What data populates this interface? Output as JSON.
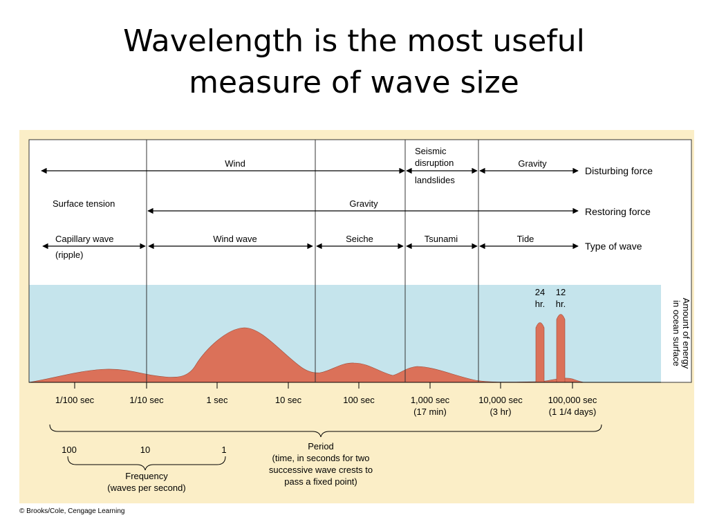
{
  "title": {
    "line1": "Wavelength is the most useful",
    "line2": "measure of wave size"
  },
  "rows": {
    "disturbing_force": {
      "label": "Disturbing force",
      "wind": "Wind",
      "seismic_line1": "Seismic",
      "seismic_line2": "disruption",
      "landslides": "landslides",
      "gravity": "Gravity"
    },
    "restoring_force": {
      "label": "Restoring force",
      "surface_tension": "Surface tension",
      "gravity": "Gravity"
    },
    "type_of_wave": {
      "label": "Type of wave",
      "capillary": "Capillary wave",
      "ripple": "(ripple)",
      "wind_wave": "Wind wave",
      "seiche": "Seiche",
      "tsunami": "Tsunami",
      "tide": "Tide"
    }
  },
  "energy": {
    "axis_label_line1": "Amount of energy",
    "axis_label_line2": "in ocean surface",
    "tide_24_line1": "24",
    "tide_24_line2": "hr.",
    "tide_12_line1": "12",
    "tide_12_line2": "hr."
  },
  "period_ticks": [
    {
      "line1": "1/100 sec",
      "line2": ""
    },
    {
      "line1": "1/10 sec",
      "line2": ""
    },
    {
      "line1": "1 sec",
      "line2": ""
    },
    {
      "line1": "10 sec",
      "line2": ""
    },
    {
      "line1": "100 sec",
      "line2": ""
    },
    {
      "line1": "1,000 sec",
      "line2": "(17 min)"
    },
    {
      "line1": "10,000 sec",
      "line2": "(3 hr)"
    },
    {
      "line1": "100,000 sec",
      "line2": "(1 1/4 days)"
    }
  ],
  "frequency_ticks": [
    "100",
    "10",
    "1"
  ],
  "period": {
    "line1": "Period",
    "line2": "(time, in seconds for two",
    "line3": "successive wave crests to",
    "line4": "pass a fixed point)"
  },
  "frequency": {
    "line1": "Frequency",
    "line2": "(waves per second)"
  },
  "credit": "© Brooks/Cole, Cengage Learning",
  "colors": {
    "background": "#fbeec7",
    "energy_band": "#c5e4ec",
    "energy_fill": "#db7159"
  }
}
